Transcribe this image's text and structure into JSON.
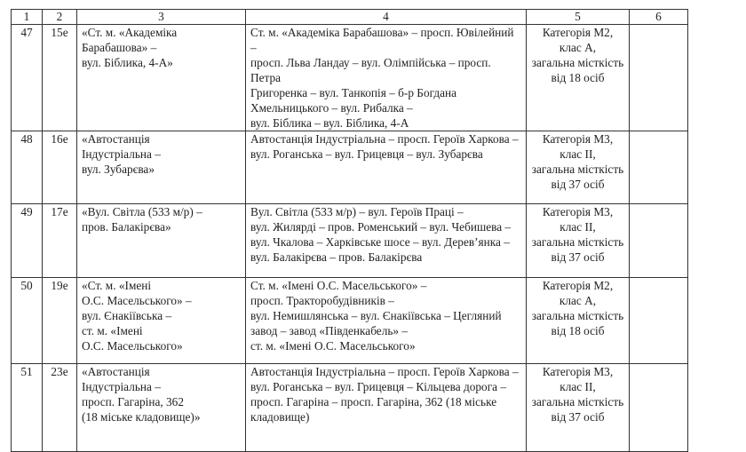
{
  "headers": [
    "1",
    "2",
    "3",
    "4",
    "5",
    "6"
  ],
  "rows": [
    {
      "no": "47",
      "route": "15е",
      "name": "«Ст. м. «Академіка\nБарабашова» –\nвул. Біблика, 4-А»",
      "path": "Ст. м. «Академіка Барабашова» – просп. Ювілейний –\nпросп. Льва Ландау – вул. Олімпійська – просп. Петра\nГригоренка – вул. Танкопія – б-р Богдана\nХмельницького – вул. Рибалка –\nвул. Біблика  – вул. Біблика, 4-А",
      "category": "Категорія М2,\nклас А,\nзагальна місткість\nвід 18 осіб",
      "note": ""
    },
    {
      "no": "48",
      "route": "16е",
      "name": "«Автостанція\nІндустріальна –\nвул. Зубарєва»",
      "path": "Автостанція Індустріальна – просп. Героїв Харкова –\nвул. Роганська – вул. Грицевця – вул. Зубарєва",
      "category": "Категорія М3,\nклас ІІ,\nзагальна місткість\nвід 37 осіб",
      "note": ""
    },
    {
      "no": "49",
      "route": "17е",
      "name": "«Вул. Світла (533 м/р) –\nпров. Балакірєва»",
      "path": "Вул. Світла (533 м/р) – вул. Героїв Праці –\nвул. Жилярді – пров. Роменський – вул. Чебишева –\nвул. Чкалова – Харківське шосе – вул. Дерев’янка –\nвул. Балакірєва – пров. Балакірєва",
      "category": "Категорія М3,\nклас ІІ,\nзагальна місткість\nвід 37 осіб",
      "note": ""
    },
    {
      "no": "50",
      "route": "19е",
      "name": "«Ст. м. «Імені\nО.С. Масельського» –\nвул. Єнакіївська –\nст. м. «Імені\nО.С. Масельського»",
      "path": "Ст. м. «Імені О.С. Масельського» –\nпросп. Тракторобудівників –\nвул. Немишлянська  – вул. Єнакіївська – Цегляний\nзавод – завод «Південкабель» –\nст. м. «Імені О.С. Масельського»",
      "category": "Категорія М2,\nклас А,\nзагальна місткість\nвід 18 осіб",
      "note": ""
    },
    {
      "no": "51",
      "route": "23е",
      "name": "«Автостанція\nІндустріальна –\nпросп. Гагаріна, 362\n(18 міське кладовище)»",
      "path": "Автостанція Індустріальна – просп. Героїв Харкова –\nвул. Роганська – вул. Грицевця – Кільцева дорога –\nпросп. Гагаріна – просп. Гагаріна, 362 (18 міське\nкладовище)",
      "category": "Категорія М3,\nклас ІІ,\nзагальна місткість\nвід 37 осіб",
      "note": ""
    }
  ]
}
